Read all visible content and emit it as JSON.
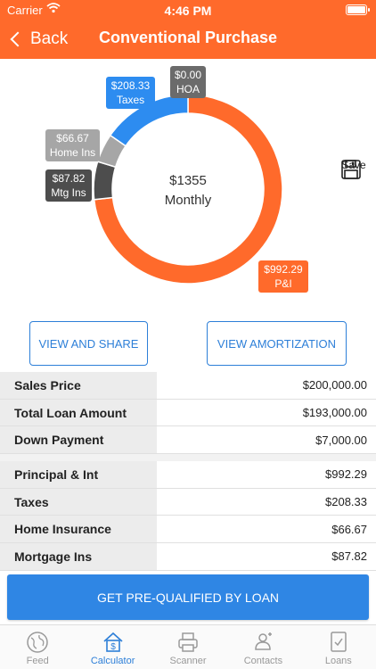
{
  "status_bar": {
    "carrier": "Carrier",
    "time": "4:46 PM"
  },
  "nav": {
    "back_label": "Back",
    "title": "Conventional Purchase"
  },
  "chart_data": {
    "type": "pie",
    "center_value": "$1355",
    "center_label": "Monthly",
    "slices": [
      {
        "label": "P&I",
        "value": 992.29,
        "display": "$992.29",
        "color": "#ff6a2b"
      },
      {
        "label": "Mtg Ins",
        "value": 87.82,
        "display": "$87.82",
        "color": "#4d4d4d"
      },
      {
        "label": "Home Ins",
        "value": 66.67,
        "display": "$66.67",
        "color": "#a6a6a6"
      },
      {
        "label": "Taxes",
        "value": 208.33,
        "display": "$208.33",
        "color": "#2d8cf0"
      },
      {
        "label": "HOA",
        "value": 0.0,
        "display": "$0.00",
        "color": "#6b6b6b"
      }
    ]
  },
  "save": {
    "label": "Save",
    "icon": "floppy-disk-icon"
  },
  "buttons": {
    "view_share": "VIEW AND SHARE",
    "view_amortization": "VIEW AMORTIZATION"
  },
  "table_loan": [
    {
      "label": "Sales Price",
      "value": "$200,000.00"
    },
    {
      "label": "Total Loan Amount",
      "value": "$193,000.00"
    },
    {
      "label": "Down Payment",
      "value": "$7,000.00"
    }
  ],
  "table_payment": [
    {
      "label": "Principal & Int",
      "value": "$992.29"
    },
    {
      "label": "Taxes",
      "value": "$208.33"
    },
    {
      "label": "Home Insurance",
      "value": "$66.67"
    },
    {
      "label": "Mortgage Ins",
      "value": "$87.82"
    }
  ],
  "cta": {
    "label": "GET PRE-QUALIFIED BY LOAN"
  },
  "tabs": [
    {
      "label": "Feed",
      "icon": "globe-icon"
    },
    {
      "label": "Calculator",
      "icon": "house-dollar-icon",
      "active": true
    },
    {
      "label": "Scanner",
      "icon": "printer-icon"
    },
    {
      "label": "Contacts",
      "icon": "contact-card-icon"
    },
    {
      "label": "Loans",
      "icon": "document-check-icon"
    }
  ],
  "colors": {
    "brand": "#ff6a2b",
    "accent": "#2d7fd8"
  }
}
